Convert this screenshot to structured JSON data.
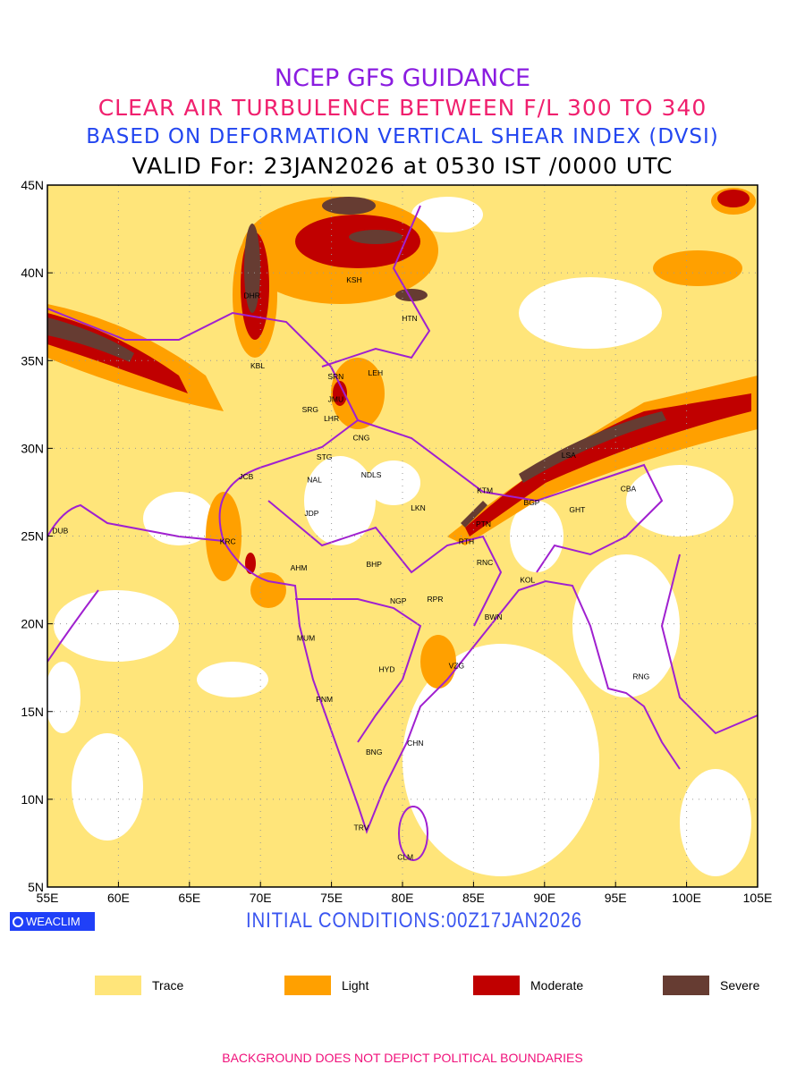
{
  "title": {
    "line1": "NCEP GFS GUIDANCE",
    "line2": "CLEAR AIR TURBULENCE BETWEEN F/L 300 TO 340",
    "line3": "BASED ON DEFORMATION VERTICAL SHEAR INDEX (DVSI)",
    "line4": "VALID For: 23JAN2026 at 0530 IST /0000 UTC"
  },
  "map": {
    "lon_range": [
      55,
      105
    ],
    "lat_range": [
      5,
      45
    ],
    "lon_ticks": [
      "55E",
      "60E",
      "65E",
      "70E",
      "75E",
      "80E",
      "85E",
      "90E",
      "95E",
      "100E",
      "105E"
    ],
    "lat_ticks": [
      "5N",
      "10N",
      "15N",
      "20N",
      "25N",
      "30N",
      "35N",
      "40N",
      "45N"
    ],
    "stations": [
      {
        "code": "DHR",
        "lon": 69.4,
        "lat": 38.7
      },
      {
        "code": "KSH",
        "lon": 76.6,
        "lat": 39.6
      },
      {
        "code": "HTN",
        "lon": 80.5,
        "lat": 37.4
      },
      {
        "code": "KBL",
        "lon": 69.8,
        "lat": 34.7
      },
      {
        "code": "SRN",
        "lon": 75.3,
        "lat": 34.1
      },
      {
        "code": "LEH",
        "lon": 78.1,
        "lat": 34.3
      },
      {
        "code": "JMU",
        "lon": 75.3,
        "lat": 32.8
      },
      {
        "code": "SRG",
        "lon": 73.5,
        "lat": 32.2
      },
      {
        "code": "LHR",
        "lon": 75.0,
        "lat": 31.7
      },
      {
        "code": "CNG",
        "lon": 77.1,
        "lat": 30.6
      },
      {
        "code": "STG",
        "lon": 74.5,
        "lat": 29.5
      },
      {
        "code": "LSA",
        "lon": 91.7,
        "lat": 29.6
      },
      {
        "code": "JCB",
        "lon": 69.0,
        "lat": 28.4
      },
      {
        "code": "NAL",
        "lon": 73.8,
        "lat": 28.2
      },
      {
        "code": "NDLS",
        "lon": 77.8,
        "lat": 28.5
      },
      {
        "code": "KTM",
        "lon": 85.8,
        "lat": 27.6
      },
      {
        "code": "CBA",
        "lon": 95.9,
        "lat": 27.7
      },
      {
        "code": "BGP",
        "lon": 89.1,
        "lat": 26.9
      },
      {
        "code": "GHT",
        "lon": 92.3,
        "lat": 26.5
      },
      {
        "code": "JDP",
        "lon": 73.6,
        "lat": 26.3
      },
      {
        "code": "LKN",
        "lon": 81.1,
        "lat": 26.6
      },
      {
        "code": "PTN",
        "lon": 85.7,
        "lat": 25.7
      },
      {
        "code": "DUB",
        "lon": 55.9,
        "lat": 25.3
      },
      {
        "code": "RTH",
        "lon": 84.5,
        "lat": 24.7
      },
      {
        "code": "KRC",
        "lon": 67.7,
        "lat": 24.7
      },
      {
        "code": "RNC",
        "lon": 85.8,
        "lat": 23.5
      },
      {
        "code": "AHM",
        "lon": 72.7,
        "lat": 23.2
      },
      {
        "code": "BHP",
        "lon": 78.0,
        "lat": 23.4
      },
      {
        "code": "KOL",
        "lon": 88.8,
        "lat": 22.5
      },
      {
        "code": "NGP",
        "lon": 79.7,
        "lat": 21.3
      },
      {
        "code": "RPR",
        "lon": 82.3,
        "lat": 21.4
      },
      {
        "code": "BWN",
        "lon": 86.4,
        "lat": 20.4
      },
      {
        "code": "MUM",
        "lon": 73.2,
        "lat": 19.2
      },
      {
        "code": "HYD",
        "lon": 78.9,
        "lat": 17.4
      },
      {
        "code": "VZG",
        "lon": 83.8,
        "lat": 17.6
      },
      {
        "code": "RNG",
        "lon": 96.8,
        "lat": 17.0
      },
      {
        "code": "PNM",
        "lon": 74.5,
        "lat": 15.7
      },
      {
        "code": "CHN",
        "lon": 80.9,
        "lat": 13.2
      },
      {
        "code": "BNG",
        "lon": 78.0,
        "lat": 12.7
      },
      {
        "code": "TRV",
        "lon": 77.1,
        "lat": 8.4
      },
      {
        "code": "CLM",
        "lon": 80.2,
        "lat": 6.7
      }
    ]
  },
  "branding": "WEACLIM",
  "initial_conditions": "INITIAL CONDITIONS:00Z17JAN2026",
  "colorbar": {
    "levels": [
      "1",
      "4",
      "8",
      "12"
    ],
    "colors": [
      "#ffe57a",
      "#ffa000",
      "#c00000",
      "#663c32"
    ]
  },
  "legend": [
    {
      "label": "Trace",
      "color": "#ffe57a"
    },
    {
      "label": "Light",
      "color": "#ffa000"
    },
    {
      "label": "Moderate",
      "color": "#c00000"
    },
    {
      "label": "Severe",
      "color": "#663c32"
    }
  ],
  "colors": {
    "boundary": "#a020d0"
  },
  "footer": "BACKGROUND DOES NOT DEPICT POLITICAL BOUNDARIES"
}
